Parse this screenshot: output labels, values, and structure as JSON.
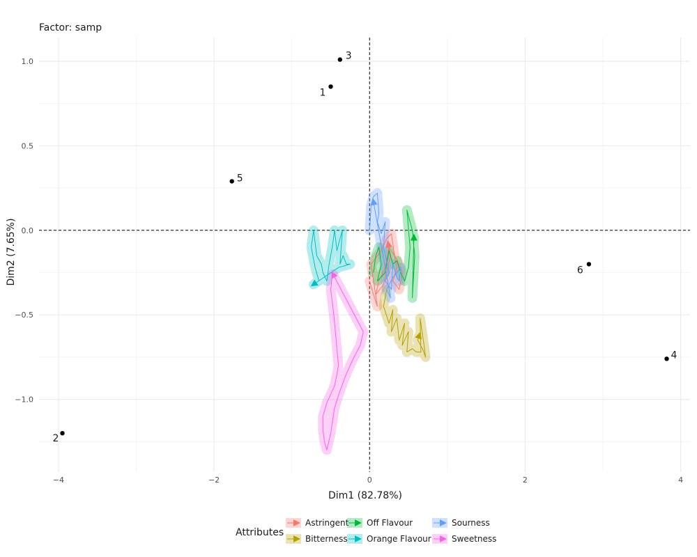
{
  "chart_data": {
    "type": "scatter",
    "title": "Factor: samp",
    "xlabel": "Dim1 (82.78%)",
    "ylabel": "Dim2 (7.65%)",
    "xlim": [
      -4.25,
      4.12
    ],
    "ylim": [
      -1.43,
      1.14
    ],
    "xticks": [
      -4,
      -2,
      0,
      2,
      4
    ],
    "yticks": [
      1.0,
      0.5,
      0.0,
      -0.5,
      -1.0
    ],
    "ytick_labels": [
      "1.0",
      "0.5",
      "0.0",
      "-0.5",
      "-1.0"
    ],
    "grid": true,
    "reference_lines": {
      "x": 0,
      "y": 0,
      "style": "dashed"
    },
    "points": [
      {
        "label": "1",
        "x": -0.5,
        "y": 0.85
      },
      {
        "label": "2",
        "x": -3.95,
        "y": -1.2
      },
      {
        "label": "3",
        "x": -0.38,
        "y": 1.01
      },
      {
        "label": "4",
        "x": 3.82,
        "y": -0.76
      },
      {
        "label": "5",
        "x": -1.77,
        "y": 0.29
      },
      {
        "label": "6",
        "x": 2.82,
        "y": -0.2
      }
    ],
    "legend": {
      "title": "Attributes",
      "position": "bottom",
      "entries": [
        "Astringent",
        "Bitterness",
        "Off Flavour",
        "Orange Flavour",
        "Sourness",
        "Sweetness"
      ]
    },
    "series": [
      {
        "name": "Astringent",
        "color": "#F8766D",
        "x": [
          0.0,
          0.05,
          0.1,
          0.02,
          0.15,
          0.22,
          0.28,
          0.32,
          0.35,
          0.3,
          0.38,
          0.42,
          0.36,
          0.25,
          0.2,
          0.12,
          0.08,
          0.18,
          0.27,
          0.24
        ],
        "y": [
          -0.3,
          -0.38,
          -0.45,
          -0.2,
          -0.12,
          -0.05,
          -0.02,
          -0.15,
          -0.22,
          -0.3,
          -0.35,
          -0.25,
          -0.18,
          -0.1,
          -0.22,
          -0.3,
          -0.38,
          -0.32,
          -0.15,
          -0.08
        ]
      },
      {
        "name": "Bitterness",
        "color": "#B79F00",
        "x": [
          0.22,
          0.18,
          0.25,
          0.3,
          0.28,
          0.35,
          0.38,
          0.45,
          0.42,
          0.5,
          0.48,
          0.55,
          0.6,
          0.66,
          0.65,
          0.7,
          0.72,
          0.68,
          0.62,
          0.64
        ],
        "y": [
          -0.35,
          -0.45,
          -0.55,
          -0.47,
          -0.6,
          -0.52,
          -0.65,
          -0.55,
          -0.68,
          -0.6,
          -0.72,
          -0.7,
          -0.72,
          -0.72,
          -0.52,
          -0.68,
          -0.75,
          -0.7,
          -0.65,
          -0.62
        ]
      },
      {
        "name": "Off Flavour",
        "color": "#00BA38",
        "x": [
          0.05,
          0.08,
          0.12,
          0.15,
          0.1,
          0.2,
          0.25,
          0.3,
          0.35,
          0.4,
          0.45,
          0.5,
          0.52,
          0.48,
          0.55,
          0.58,
          0.55,
          0.57
        ],
        "y": [
          -0.25,
          -0.15,
          -0.1,
          -0.2,
          -0.3,
          -0.25,
          -0.12,
          -0.2,
          -0.18,
          -0.25,
          -0.3,
          -0.22,
          -0.1,
          0.12,
          0.0,
          -0.15,
          -0.4,
          -0.04
        ]
      },
      {
        "name": "Orange Flavour",
        "color": "#00BFC4",
        "x": [
          -0.65,
          -0.7,
          -0.75,
          -0.72,
          -0.68,
          -0.62,
          -0.6,
          -0.55,
          -0.52,
          -0.48,
          -0.45,
          -0.42,
          -0.38,
          -0.35,
          -0.38,
          -0.34,
          -0.3,
          -0.25,
          -0.4,
          -0.72
        ],
        "y": [
          -0.3,
          -0.22,
          -0.1,
          0.0,
          -0.15,
          -0.2,
          -0.25,
          -0.3,
          -0.2,
          -0.1,
          0.0,
          -0.12,
          -0.05,
          0.0,
          -0.2,
          -0.15,
          -0.2,
          -0.2,
          -0.22,
          -0.32
        ]
      },
      {
        "name": "Sourness",
        "color": "#619CFF",
        "x": [
          0.0,
          0.02,
          0.05,
          0.1,
          0.12,
          0.1,
          0.15,
          0.2,
          0.18,
          0.22,
          0.25,
          0.2,
          0.28,
          0.3,
          0.35,
          0.38,
          0.4,
          0.3,
          0.22,
          0.27,
          0.05
        ],
        "y": [
          0.0,
          0.15,
          0.2,
          0.22,
          0.1,
          0.05,
          -0.02,
          0.05,
          -0.1,
          -0.18,
          -0.25,
          -0.3,
          -0.35,
          -0.2,
          -0.28,
          -0.3,
          -0.22,
          -0.28,
          -0.35,
          -0.4,
          0.17
        ]
      },
      {
        "name": "Sweetness",
        "color": "#F564E3",
        "x": [
          -0.48,
          -0.5,
          -0.46,
          -0.44,
          -0.42,
          -0.4,
          -0.42,
          -0.45,
          -0.5,
          -0.55,
          -0.6,
          -0.6,
          -0.58,
          -0.55,
          -0.5,
          -0.45,
          -0.38,
          -0.3,
          -0.2,
          -0.12,
          -0.08,
          -0.47
        ],
        "y": [
          -0.27,
          -0.35,
          -0.5,
          -0.6,
          -0.7,
          -0.8,
          -0.85,
          -0.92,
          -0.97,
          -1.02,
          -1.1,
          -1.18,
          -1.25,
          -1.3,
          -1.2,
          -1.05,
          -0.95,
          -0.85,
          -0.75,
          -0.68,
          -0.6,
          -0.26
        ]
      }
    ]
  }
}
